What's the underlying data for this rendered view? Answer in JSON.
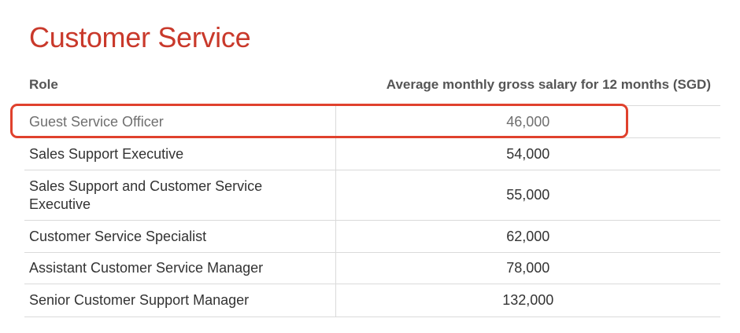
{
  "title": "Customer Service",
  "table": {
    "headers": {
      "role": "Role",
      "salary": "Average monthly gross salary for 12 months (SGD)"
    },
    "rows": [
      {
        "role": "Guest Service Officer",
        "salary": "46,000"
      },
      {
        "role": "Sales Support Executive",
        "salary": "54,000"
      },
      {
        "role": "Sales Support and Customer Service Executive",
        "salary": "55,000"
      },
      {
        "role": "Customer Service Specialist",
        "salary": "62,000"
      },
      {
        "role": "Assistant Customer Service Manager",
        "salary": "78,000"
      },
      {
        "role": "Senior Customer Support Manager",
        "salary": "132,000"
      }
    ]
  },
  "colors": {
    "title": "#c9392b",
    "highlight": "#e0412d",
    "header_text": "#555555",
    "body_text": "#333333",
    "rule": "#dadada"
  },
  "highlighted_row_index": 0
}
